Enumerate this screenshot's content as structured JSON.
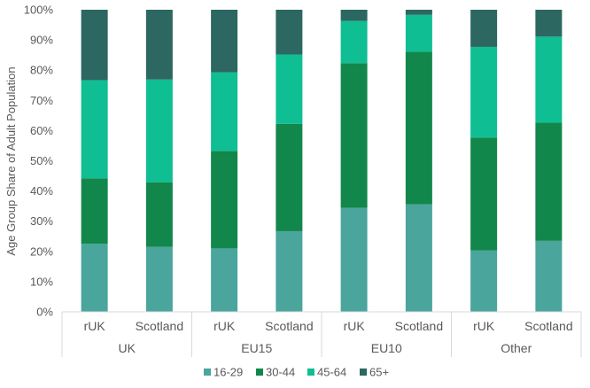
{
  "chart_data": {
    "type": "bar",
    "stacked": true,
    "ylabel": "Age Group Share of Adult Population",
    "ylim": [
      0,
      100
    ],
    "yticks": [
      "0%",
      "10%",
      "20%",
      "30%",
      "40%",
      "50%",
      "60%",
      "70%",
      "80%",
      "90%",
      "100%"
    ],
    "groups": [
      "UK",
      "EU15",
      "EU10",
      "Other"
    ],
    "categories": [
      "rUK",
      "Scotland",
      "rUK",
      "Scotland",
      "rUK",
      "Scotland",
      "rUK",
      "Scotland"
    ],
    "series": [
      {
        "name": "16-29",
        "color": "#4aa59d",
        "values": [
          22.5,
          21.5,
          21,
          26.7,
          34.4,
          35.6,
          20.3,
          23.5
        ]
      },
      {
        "name": "30-44",
        "color": "#12874b",
        "values": [
          21.7,
          21.4,
          32.2,
          35.5,
          47.9,
          50.5,
          37.4,
          39.1
        ]
      },
      {
        "name": "45-64",
        "color": "#0fbe93",
        "values": [
          32.5,
          34,
          26.1,
          23,
          14,
          12.2,
          30,
          28.5
        ]
      },
      {
        "name": "65+",
        "color": "#2c6762",
        "values": [
          23.3,
          23.1,
          20.7,
          14.8,
          3.7,
          1.7,
          12.3,
          8.9
        ]
      }
    ],
    "legend_position": "bottom",
    "grid": false
  }
}
